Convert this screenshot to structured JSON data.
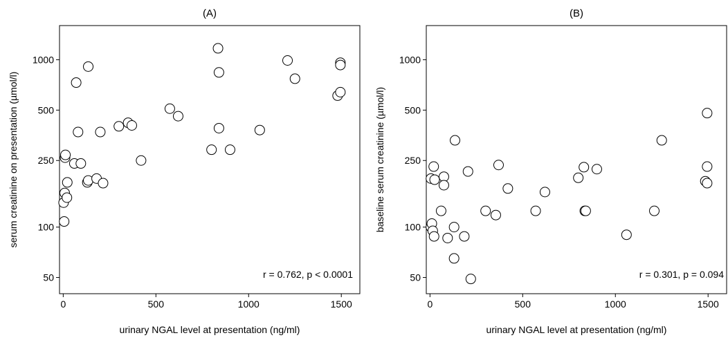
{
  "chart_data": [
    {
      "type": "scatter",
      "title": "(A)",
      "xlabel": "urinary NGAL level at presentation (ng/ml)",
      "ylabel": "serum creatinine on presentation (µmol/l)",
      "annotation": "r = 0.762, p < 0.0001",
      "xlim": [
        -20,
        1600
      ],
      "ylim": [
        40,
        1600
      ],
      "yscale": "log",
      "xticks": [
        0,
        500,
        1000,
        1500
      ],
      "xtick_labels": [
        "0",
        "500",
        "1000",
        "1500"
      ],
      "yticks": [
        50,
        100,
        250,
        500,
        1000
      ],
      "ytick_labels": [
        "50",
        "100",
        "250",
        "500",
        "1000"
      ],
      "grid": false,
      "points": [
        [
          5,
          108
        ],
        [
          2,
          140
        ],
        [
          8,
          160
        ],
        [
          20,
          150
        ],
        [
          22,
          185
        ],
        [
          10,
          260
        ],
        [
          12,
          270
        ],
        [
          60,
          240
        ],
        [
          70,
          730
        ],
        [
          80,
          370
        ],
        [
          95,
          240
        ],
        [
          130,
          185
        ],
        [
          135,
          190
        ],
        [
          135,
          910
        ],
        [
          180,
          195
        ],
        [
          200,
          370
        ],
        [
          215,
          183
        ],
        [
          300,
          400
        ],
        [
          350,
          420
        ],
        [
          370,
          405
        ],
        [
          420,
          250
        ],
        [
          575,
          510
        ],
        [
          620,
          460
        ],
        [
          800,
          290
        ],
        [
          835,
          1170
        ],
        [
          840,
          840
        ],
        [
          840,
          390
        ],
        [
          900,
          290
        ],
        [
          1060,
          380
        ],
        [
          1210,
          990
        ],
        [
          1250,
          770
        ],
        [
          1480,
          610
        ],
        [
          1495,
          640
        ],
        [
          1495,
          960
        ],
        [
          1495,
          930
        ]
      ]
    },
    {
      "type": "scatter",
      "title": "(B)",
      "xlabel": "urinary NGAL level at presentation (ng/ml)",
      "ylabel": "baseline serum creatinine (µmol/l)",
      "annotation": "r = 0.301, p = 0.094",
      "xlim": [
        -20,
        1600
      ],
      "ylim": [
        40,
        1600
      ],
      "yscale": "log",
      "xticks": [
        0,
        500,
        1000,
        1500
      ],
      "xtick_labels": [
        "0",
        "500",
        "1000",
        "1500"
      ],
      "yticks": [
        50,
        100,
        250,
        500,
        1000
      ],
      "ytick_labels": [
        "50",
        "100",
        "250",
        "500",
        "1000"
      ],
      "grid": false,
      "points": [
        [
          5,
          100
        ],
        [
          10,
          105
        ],
        [
          15,
          95
        ],
        [
          22,
          88
        ],
        [
          5,
          195
        ],
        [
          20,
          230
        ],
        [
          25,
          192
        ],
        [
          60,
          125
        ],
        [
          75,
          200
        ],
        [
          75,
          178
        ],
        [
          95,
          86
        ],
        [
          130,
          100
        ],
        [
          135,
          330
        ],
        [
          130,
          65
        ],
        [
          185,
          88
        ],
        [
          205,
          215
        ],
        [
          220,
          49
        ],
        [
          300,
          125
        ],
        [
          355,
          118
        ],
        [
          370,
          235
        ],
        [
          420,
          170
        ],
        [
          570,
          125
        ],
        [
          620,
          162
        ],
        [
          800,
          197
        ],
        [
          830,
          228
        ],
        [
          835,
          125
        ],
        [
          840,
          125
        ],
        [
          900,
          222
        ],
        [
          1060,
          90
        ],
        [
          1210,
          125
        ],
        [
          1250,
          330
        ],
        [
          1485,
          188
        ],
        [
          1495,
          230
        ],
        [
          1495,
          183
        ],
        [
          1495,
          480
        ]
      ]
    }
  ]
}
